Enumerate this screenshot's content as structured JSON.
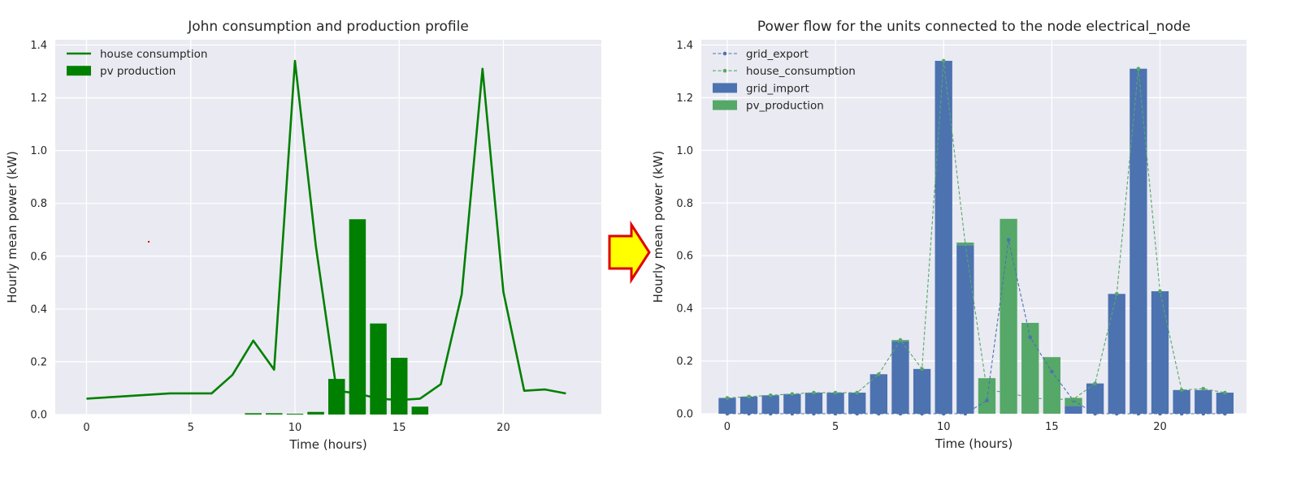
{
  "chart_data": [
    {
      "type": "bar+line",
      "title": "John consumption and production profile",
      "xlabel": "Time (hours)",
      "ylabel": "Hourly mean power (kW)",
      "xlim": [
        -1.5,
        24.7
      ],
      "ylim": [
        0,
        1.42
      ],
      "xticks": [
        0,
        5,
        10,
        15,
        20
      ],
      "yticks": [
        0.0,
        0.2,
        0.4,
        0.6,
        0.8,
        1.0,
        1.2,
        1.4
      ],
      "xtick_labels": [
        "0",
        "5",
        "10",
        "15",
        "20"
      ],
      "ytick_labels": [
        "0.0",
        "0.2",
        "0.4",
        "0.6",
        "0.8",
        "1.0",
        "1.2",
        "1.4"
      ],
      "x": [
        0,
        1,
        2,
        3,
        4,
        5,
        6,
        7,
        8,
        9,
        10,
        11,
        12,
        13,
        14,
        15,
        16,
        17,
        18,
        19,
        20,
        21,
        22,
        23
      ],
      "legend": [
        "house consumption",
        "pv production"
      ],
      "legend_location": "top-left",
      "series": [
        {
          "name": "house consumption",
          "kind": "line",
          "color": "#008000",
          "values": [
            0.06,
            0.065,
            0.07,
            0.075,
            0.08,
            0.08,
            0.08,
            0.15,
            0.28,
            0.17,
            1.34,
            0.64,
            0.09,
            0.08,
            0.06,
            0.055,
            0.06,
            0.115,
            0.455,
            1.31,
            0.465,
            0.09,
            0.095,
            0.08
          ]
        },
        {
          "name": "pv production",
          "kind": "bar",
          "color": "#008000",
          "values": [
            0,
            0,
            0,
            0,
            0,
            0,
            0,
            0,
            0.005,
            0.005,
            0.003,
            0.01,
            0.135,
            0.74,
            0.345,
            0.215,
            0.03,
            0,
            0,
            0,
            0,
            0,
            0,
            0
          ]
        }
      ]
    },
    {
      "type": "bar+line",
      "title": "Power flow for the units connected to the node electrical_node",
      "xlabel": "Time (hours)",
      "ylabel": "Hourly mean power (kW)",
      "xlim": [
        -1.2,
        24.0
      ],
      "ylim": [
        0,
        1.42
      ],
      "xticks": [
        0,
        5,
        10,
        15,
        20
      ],
      "yticks": [
        0.0,
        0.2,
        0.4,
        0.6,
        0.8,
        1.0,
        1.2,
        1.4
      ],
      "xtick_labels": [
        "0",
        "5",
        "10",
        "15",
        "20"
      ],
      "ytick_labels": [
        "0.0",
        "0.2",
        "0.4",
        "0.6",
        "0.8",
        "1.0",
        "1.2",
        "1.4"
      ],
      "x": [
        0,
        1,
        2,
        3,
        4,
        5,
        6,
        7,
        8,
        9,
        10,
        11,
        12,
        13,
        14,
        15,
        16,
        17,
        18,
        19,
        20,
        21,
        22,
        23
      ],
      "legend": [
        "grid_export",
        "house_consumption",
        "grid_import",
        "pv_production"
      ],
      "legend_location": "top-left",
      "series": [
        {
          "name": "grid_export",
          "kind": "dashed-line-markers",
          "color": "#4C72B0",
          "values": [
            0,
            0,
            0,
            0,
            0,
            0,
            0,
            0,
            0,
            0,
            0,
            0,
            0.05,
            0.66,
            0.29,
            0.16,
            0.05,
            0,
            0,
            0,
            0,
            0,
            0,
            0
          ]
        },
        {
          "name": "house_consumption",
          "kind": "dashed-line-markers",
          "color": "#55A868",
          "values": [
            0.06,
            0.065,
            0.07,
            0.075,
            0.08,
            0.08,
            0.08,
            0.15,
            0.28,
            0.17,
            1.34,
            0.645,
            0.09,
            0.08,
            0.06,
            0.055,
            0.055,
            0.115,
            0.455,
            1.31,
            0.465,
            0.09,
            0.095,
            0.08
          ]
        },
        {
          "name": "grid_import",
          "kind": "stacked-bar",
          "color": "#4C72B0",
          "values": [
            0.06,
            0.065,
            0.07,
            0.075,
            0.08,
            0.08,
            0.08,
            0.15,
            0.275,
            0.17,
            1.34,
            0.64,
            0,
            0,
            0,
            0,
            0.03,
            0.115,
            0.455,
            1.31,
            0.465,
            0.09,
            0.09,
            0.08
          ]
        },
        {
          "name": "pv_production",
          "kind": "stacked-bar",
          "color": "#55A868",
          "values": [
            0,
            0,
            0,
            0,
            0,
            0,
            0,
            0,
            0.005,
            0,
            0,
            0.01,
            0.135,
            0.74,
            0.345,
            0.215,
            0.03,
            0,
            0,
            0,
            0,
            0,
            0,
            0
          ]
        }
      ]
    }
  ],
  "arrow": {
    "icon": "right-arrow-icon",
    "fill": "#FFFF00",
    "stroke": "#E00000"
  }
}
